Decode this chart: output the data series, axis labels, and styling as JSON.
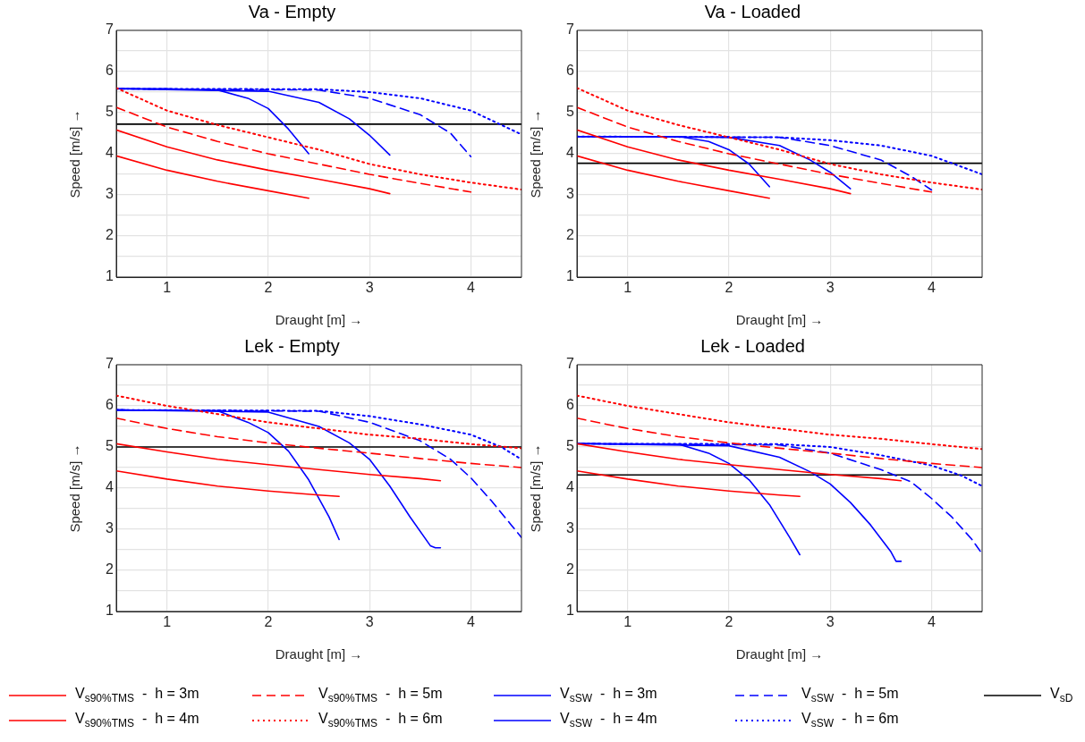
{
  "chart_data": [
    {
      "type": "line",
      "title": "Va - Empty",
      "xlabel": "Draught [m] →",
      "ylabel": "Speed [m/s] →",
      "xlim": [
        0.5,
        4.5
      ],
      "xticks": [
        1,
        2,
        3,
        4
      ],
      "ylim": [
        1,
        7
      ],
      "yticks": [
        1,
        {
          "value": 1.5,
          "label": null
        },
        2,
        {
          "value": 2.5,
          "label": null
        },
        3,
        {
          "value": 3.5,
          "label": null
        },
        4,
        {
          "value": 4.5,
          "label": null
        },
        5,
        {
          "value": 5.5,
          "label": null
        },
        6,
        {
          "value": 6.5,
          "label": null
        },
        7
      ],
      "grid": true,
      "marker": "none",
      "series": [
        {
          "color": "#ff0000",
          "line_style": "solid",
          "x": [
            0.5,
            1,
            1.5,
            2,
            2.4
          ],
          "values": [
            3.95,
            3.6,
            3.33,
            3.1,
            2.92
          ]
        },
        {
          "color": "#ff0000",
          "line_style": "solid",
          "x": [
            0.5,
            1,
            1.5,
            2,
            2.5,
            3,
            3.2
          ],
          "values": [
            4.58,
            4.17,
            3.85,
            3.6,
            3.38,
            3.15,
            3.03
          ]
        },
        {
          "color": "#ff0000",
          "line_style": "dashed",
          "x": [
            0.5,
            1,
            1.5,
            2,
            2.5,
            3,
            3.5,
            4
          ],
          "values": [
            5.13,
            4.65,
            4.3,
            4.0,
            3.75,
            3.5,
            3.28,
            3.07
          ]
        },
        {
          "color": "#ff0000",
          "line_style": "dotted",
          "x": [
            0.5,
            1,
            1.5,
            2,
            2.5,
            3,
            3.5,
            4,
            4.5
          ],
          "values": [
            5.6,
            5.05,
            4.7,
            4.4,
            4.1,
            3.75,
            3.5,
            3.3,
            3.13
          ]
        },
        {
          "color": "#0000ff",
          "line_style": "solid",
          "x": [
            0.5,
            1,
            1.5,
            1.8,
            2,
            2.2,
            2.4
          ],
          "values": [
            5.58,
            5.58,
            5.55,
            5.35,
            5.1,
            4.6,
            4.0
          ]
        },
        {
          "color": "#0000ff",
          "line_style": "solid",
          "x": [
            0.5,
            2,
            2.5,
            2.8,
            3,
            3.2
          ],
          "values": [
            5.58,
            5.52,
            5.25,
            4.85,
            4.45,
            3.97
          ]
        },
        {
          "color": "#0000ff",
          "line_style": "dashed",
          "x": [
            0.5,
            2.5,
            3,
            3.5,
            3.8,
            4
          ],
          "values": [
            5.58,
            5.55,
            5.35,
            4.95,
            4.5,
            3.93
          ]
        },
        {
          "color": "#0000ff",
          "line_style": "dotted",
          "x": [
            0.5,
            2.5,
            3,
            3.5,
            4,
            4.5
          ],
          "values": [
            5.58,
            5.57,
            5.5,
            5.35,
            5.05,
            4.47
          ]
        },
        {
          "color": "#000000",
          "line_style": "solid",
          "x": [
            0.5,
            4.5
          ],
          "values": [
            4.72,
            4.72
          ]
        }
      ]
    },
    {
      "type": "line",
      "title": "Va - Loaded",
      "xlabel": "Draught [m] →",
      "ylabel": "Speed [m/s] →",
      "xlim": [
        0.5,
        4.5
      ],
      "xticks": [
        1,
        2,
        3,
        4
      ],
      "ylim": [
        1,
        7
      ],
      "yticks": [
        1,
        {
          "value": 1.5,
          "label": null
        },
        2,
        {
          "value": 2.5,
          "label": null
        },
        3,
        {
          "value": 3.5,
          "label": null
        },
        4,
        {
          "value": 4.5,
          "label": null
        },
        5,
        {
          "value": 5.5,
          "label": null
        },
        6,
        {
          "value": 6.5,
          "label": null
        },
        7
      ],
      "grid": true,
      "marker": "none",
      "series": [
        {
          "color": "#ff0000",
          "line_style": "solid",
          "x": [
            0.5,
            1,
            1.5,
            2,
            2.4
          ],
          "values": [
            3.95,
            3.6,
            3.33,
            3.1,
            2.92
          ]
        },
        {
          "color": "#ff0000",
          "line_style": "solid",
          "x": [
            0.5,
            1,
            1.5,
            2,
            2.5,
            3,
            3.2
          ],
          "values": [
            4.58,
            4.17,
            3.85,
            3.6,
            3.38,
            3.15,
            3.03
          ]
        },
        {
          "color": "#ff0000",
          "line_style": "dashed",
          "x": [
            0.5,
            1,
            1.5,
            2,
            2.5,
            3,
            3.5,
            4
          ],
          "values": [
            5.13,
            4.65,
            4.3,
            4.0,
            3.75,
            3.5,
            3.28,
            3.07
          ]
        },
        {
          "color": "#ff0000",
          "line_style": "dotted",
          "x": [
            0.5,
            1,
            1.5,
            2,
            2.5,
            3,
            3.5,
            4,
            4.5
          ],
          "values": [
            5.6,
            5.05,
            4.7,
            4.4,
            4.1,
            3.75,
            3.5,
            3.3,
            3.13
          ]
        },
        {
          "color": "#0000ff",
          "line_style": "solid",
          "x": [
            0.5,
            1.5,
            1.8,
            2,
            2.2,
            2.4
          ],
          "values": [
            4.42,
            4.42,
            4.3,
            4.1,
            3.75,
            3.2
          ]
        },
        {
          "color": "#0000ff",
          "line_style": "solid",
          "x": [
            0.5,
            2,
            2.5,
            2.8,
            3,
            3.2
          ],
          "values": [
            4.42,
            4.4,
            4.2,
            3.85,
            3.55,
            3.15
          ]
        },
        {
          "color": "#0000ff",
          "line_style": "dashed",
          "x": [
            0.5,
            2.5,
            3,
            3.5,
            3.8,
            4
          ],
          "values": [
            4.42,
            4.4,
            4.2,
            3.85,
            3.45,
            3.12
          ]
        },
        {
          "color": "#0000ff",
          "line_style": "dotted",
          "x": [
            0.5,
            2.5,
            3,
            3.5,
            4,
            4.5
          ],
          "values": [
            4.42,
            4.4,
            4.33,
            4.2,
            3.95,
            3.5
          ]
        },
        {
          "color": "#000000",
          "line_style": "solid",
          "x": [
            0.5,
            4.5
          ],
          "values": [
            3.77,
            3.77
          ]
        }
      ]
    },
    {
      "type": "line",
      "title": "Lek - Empty",
      "xlabel": "Draught [m] →",
      "ylabel": "Speed [m/s] →",
      "xlim": [
        0.5,
        4.5
      ],
      "xticks": [
        1,
        2,
        3,
        4
      ],
      "ylim": [
        1,
        7
      ],
      "yticks": [
        1,
        {
          "value": 1.5,
          "label": null
        },
        2,
        {
          "value": 2.5,
          "label": null
        },
        3,
        {
          "value": 3.5,
          "label": null
        },
        4,
        {
          "value": 4.5,
          "label": null
        },
        5,
        {
          "value": 5.5,
          "label": null
        },
        6,
        {
          "value": 6.5,
          "label": null
        },
        7
      ],
      "grid": true,
      "marker": "none",
      "series": [
        {
          "color": "#ff0000",
          "line_style": "solid",
          "x": [
            0.5,
            1,
            1.5,
            2,
            2.5,
            2.7
          ],
          "values": [
            4.42,
            4.22,
            4.05,
            3.93,
            3.83,
            3.8
          ]
        },
        {
          "color": "#ff0000",
          "line_style": "solid",
          "x": [
            0.5,
            1,
            1.5,
            2,
            2.5,
            3,
            3.5,
            3.7
          ],
          "values": [
            5.08,
            4.88,
            4.7,
            4.57,
            4.45,
            4.33,
            4.23,
            4.18
          ]
        },
        {
          "color": "#ff0000",
          "line_style": "dashed",
          "x": [
            0.5,
            1,
            1.5,
            2,
            2.5,
            3,
            3.5,
            4,
            4.5
          ],
          "values": [
            5.7,
            5.45,
            5.25,
            5.1,
            4.97,
            4.85,
            4.72,
            4.6,
            4.5
          ]
        },
        {
          "color": "#ff0000",
          "line_style": "dotted",
          "x": [
            0.5,
            1,
            1.5,
            2,
            2.5,
            3,
            3.5,
            4,
            4.5
          ],
          "values": [
            6.25,
            6.0,
            5.8,
            5.6,
            5.45,
            5.3,
            5.2,
            5.07,
            4.97
          ]
        },
        {
          "color": "#0000ff",
          "line_style": "solid",
          "x": [
            0.5,
            1.5,
            1.8,
            2,
            2.2,
            2.4,
            2.6,
            2.7
          ],
          "values": [
            5.9,
            5.88,
            5.6,
            5.35,
            4.9,
            4.2,
            3.3,
            2.75
          ]
        },
        {
          "color": "#0000ff",
          "line_style": "solid",
          "x": [
            0.5,
            2,
            2.5,
            2.8,
            3,
            3.2,
            3.4,
            3.6,
            3.65,
            3.7
          ],
          "values": [
            5.9,
            5.85,
            5.5,
            5.1,
            4.7,
            4.05,
            3.3,
            2.6,
            2.55,
            2.55
          ]
        },
        {
          "color": "#0000ff",
          "line_style": "dashed",
          "x": [
            0.5,
            2.5,
            3,
            3.5,
            3.8,
            4,
            4.2,
            4.4,
            4.5
          ],
          "values": [
            5.9,
            5.87,
            5.6,
            5.15,
            4.7,
            4.25,
            3.7,
            3.1,
            2.8
          ]
        },
        {
          "color": "#0000ff",
          "line_style": "dotted",
          "x": [
            0.5,
            2.5,
            3,
            3.5,
            4,
            4.3,
            4.5
          ],
          "values": [
            5.9,
            5.88,
            5.75,
            5.55,
            5.3,
            5.0,
            4.7
          ]
        },
        {
          "color": "#000000",
          "line_style": "solid",
          "x": [
            0.5,
            4.5
          ],
          "values": [
            5.0,
            5.0
          ]
        }
      ]
    },
    {
      "type": "line",
      "title": "Lek - Loaded",
      "xlabel": "Draught [m] →",
      "ylabel": "Speed [m/s] →",
      "xlim": [
        0.5,
        4.5
      ],
      "xticks": [
        1,
        2,
        3,
        4
      ],
      "ylim": [
        1,
        7
      ],
      "yticks": [
        1,
        {
          "value": 1.5,
          "label": null
        },
        2,
        {
          "value": 2.5,
          "label": null
        },
        3,
        {
          "value": 3.5,
          "label": null
        },
        4,
        {
          "value": 4.5,
          "label": null
        },
        5,
        {
          "value": 5.5,
          "label": null
        },
        6,
        {
          "value": 6.5,
          "label": null
        },
        7
      ],
      "grid": true,
      "legend": "bottom",
      "marker": "none",
      "series": [
        {
          "name": "V$_{s90%TMS}$  -  h = 3m",
          "color": "#ff0000",
          "line_style": "solid",
          "x": [
            0.5,
            1,
            1.5,
            2,
            2.5,
            2.7
          ],
          "values": [
            4.42,
            4.22,
            4.05,
            3.93,
            3.83,
            3.8
          ]
        },
        {
          "name": "V$_{s90%TMS}$  -  h = 4m",
          "color": "#ff0000",
          "line_style": "solid",
          "x": [
            0.5,
            1,
            1.5,
            2,
            2.5,
            3,
            3.5,
            3.7
          ],
          "values": [
            5.08,
            4.88,
            4.7,
            4.57,
            4.45,
            4.33,
            4.23,
            4.18
          ]
        },
        {
          "name": "V$_{s90%TMS}$  -  h = 5m",
          "color": "#ff0000",
          "line_style": "dashed",
          "x": [
            0.5,
            1,
            1.5,
            2,
            2.5,
            3,
            3.5,
            4,
            4.5
          ],
          "values": [
            5.7,
            5.45,
            5.25,
            5.1,
            4.97,
            4.85,
            4.72,
            4.6,
            4.5
          ]
        },
        {
          "name": "V$_{s90%TMS}$  -  h = 6m",
          "color": "#ff0000",
          "line_style": "dotted",
          "x": [
            0.5,
            1,
            1.5,
            2,
            2.5,
            3,
            3.5,
            4,
            4.5
          ],
          "values": [
            6.25,
            6.0,
            5.8,
            5.6,
            5.45,
            5.3,
            5.2,
            5.07,
            4.95
          ]
        },
        {
          "name": "V$_{sSW}$  -  h = 3m",
          "color": "#0000ff",
          "line_style": "solid",
          "x": [
            0.5,
            1.5,
            1.8,
            2,
            2.2,
            2.4,
            2.6,
            2.7
          ],
          "values": [
            5.08,
            5.07,
            4.85,
            4.6,
            4.2,
            3.6,
            2.8,
            2.38
          ]
        },
        {
          "name": "V$_{sSW}$  -  h = 4m",
          "color": "#0000ff",
          "line_style": "solid",
          "x": [
            0.5,
            2,
            2.5,
            2.8,
            3,
            3.2,
            3.4,
            3.6,
            3.65,
            3.7
          ],
          "values": [
            5.08,
            5.03,
            4.75,
            4.4,
            4.1,
            3.65,
            3.1,
            2.45,
            2.22,
            2.22
          ]
        },
        {
          "name": "V$_{sSW}$  -  h = 5m",
          "color": "#0000ff",
          "line_style": "dashed",
          "x": [
            0.5,
            2.5,
            3,
            3.5,
            3.8,
            4,
            4.2,
            4.4,
            4.5
          ],
          "values": [
            5.08,
            5.05,
            4.85,
            4.45,
            4.15,
            3.75,
            3.3,
            2.75,
            2.4
          ]
        },
        {
          "name": "V$_{sSW}$  -  h = 6m",
          "color": "#0000ff",
          "line_style": "dotted",
          "x": [
            0.5,
            2.5,
            3,
            3.5,
            4,
            4.3,
            4.5
          ],
          "values": [
            5.08,
            5.07,
            5.0,
            4.8,
            4.55,
            4.3,
            4.05
          ]
        },
        {
          "name": "V$_{sD}$",
          "color": "#000000",
          "line_style": "solid",
          "x": [
            0.5,
            4.5
          ],
          "values": [
            4.32,
            4.32
          ]
        }
      ]
    }
  ]
}
